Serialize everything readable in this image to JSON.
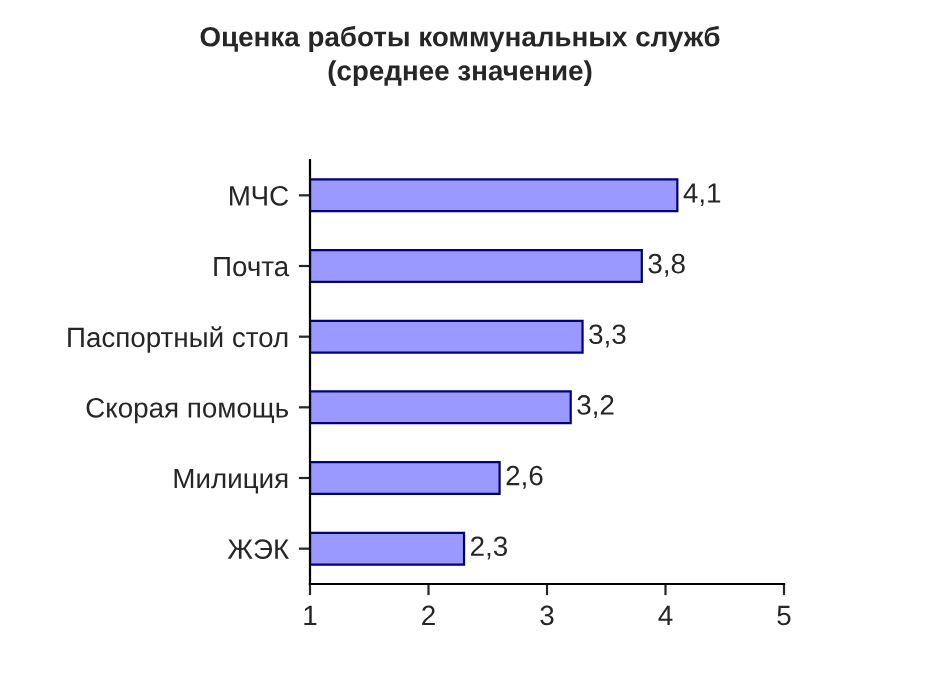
{
  "chart_data": {
    "type": "bar",
    "orientation": "horizontal",
    "title": "Оценка работы коммунальных служб\n(среднее значение)",
    "categories": [
      "МЧС",
      "Почта",
      "Паспортный стол",
      "Скорая помощь",
      "Милиция",
      "ЖЭК"
    ],
    "values": [
      4.1,
      3.8,
      3.3,
      3.2,
      2.6,
      2.3
    ],
    "value_labels": [
      "4,1",
      "3,8",
      "3,3",
      "3,2",
      "2,6",
      "2,3"
    ],
    "color": "#9999ff",
    "xlim": [
      1,
      5
    ],
    "xticks": [
      1,
      2,
      3,
      4,
      5
    ],
    "grid": false,
    "legend": false
  }
}
